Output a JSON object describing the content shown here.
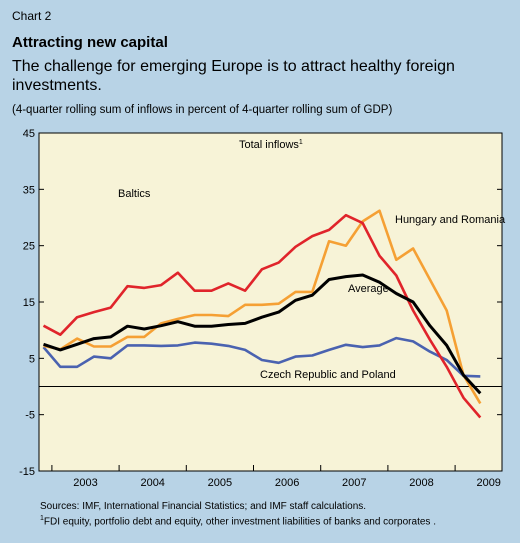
{
  "header": {
    "chart_number": "Chart 2",
    "title": "Attracting new capital",
    "subtitle": "The challenge for emerging Europe is to attract healthy foreign investments.",
    "note": "(4-quarter rolling sum of inflows in percent of 4-quarter rolling sum of GDP)"
  },
  "footer": {
    "sources": "Sources: IMF, International Financial Statistics; and IMF staff calculations.",
    "footnote_marker": "1",
    "footnote": "FDI equity, portfolio debt and equity, other investment liabilities of banks and corporates ."
  },
  "chart_data": {
    "type": "line",
    "annotation": "Total inflows",
    "annotation_sup": "1",
    "x": [
      "2002Q4",
      "2003Q1",
      "2003Q2",
      "2003Q3",
      "2003Q4",
      "2004Q1",
      "2004Q2",
      "2004Q3",
      "2004Q4",
      "2005Q1",
      "2005Q2",
      "2005Q3",
      "2005Q4",
      "2006Q1",
      "2006Q2",
      "2006Q3",
      "2006Q4",
      "2007Q1",
      "2007Q2",
      "2007Q3",
      "2007Q4",
      "2008Q1",
      "2008Q2",
      "2008Q3",
      "2008Q4",
      "2009Q1",
      "2009Q2"
    ],
    "x_tick_labels": [
      "2003",
      "2004",
      "2005",
      "2006",
      "2007",
      "2008",
      "2009"
    ],
    "y_ticks": [
      45,
      35,
      25,
      15,
      5,
      -5,
      -15
    ],
    "ylim": [
      -15,
      45
    ],
    "zero_line": 0,
    "series": [
      {
        "name": "Baltics",
        "color": "#e0242b",
        "values": [
          10.8,
          9.2,
          12.3,
          13.2,
          14.0,
          17.8,
          17.5,
          18.0,
          20.2,
          17.0,
          17.0,
          18.3,
          17.0,
          20.8,
          22.0,
          24.8,
          26.7,
          27.8,
          30.4,
          29.0,
          23.2,
          19.7,
          13.5,
          8.3,
          3.5,
          -2.0,
          -5.5
        ]
      },
      {
        "name": "Hungary and Romania",
        "color": "#f5a034",
        "values": [
          7.2,
          6.6,
          8.5,
          7.1,
          7.1,
          8.8,
          8.8,
          11.2,
          12.0,
          12.7,
          12.7,
          12.5,
          14.5,
          14.5,
          14.7,
          16.8,
          16.8,
          25.8,
          25.0,
          29.3,
          31.2,
          22.5,
          24.5,
          19.0,
          13.5,
          2.0,
          -3.0
        ]
      },
      {
        "name": "Average",
        "color": "#000000",
        "values": [
          7.5,
          6.5,
          7.5,
          8.5,
          8.8,
          10.7,
          10.2,
          10.8,
          11.5,
          10.7,
          10.7,
          11.0,
          11.2,
          12.3,
          13.2,
          15.3,
          16.2,
          19.0,
          19.5,
          19.8,
          18.5,
          16.5,
          15.0,
          10.8,
          7.3,
          2.0,
          -1.2
        ]
      },
      {
        "name": "Czech Republic and Poland",
        "color": "#4a62b0",
        "values": [
          7.0,
          3.5,
          3.5,
          5.3,
          5.0,
          7.3,
          7.3,
          7.2,
          7.3,
          7.8,
          7.6,
          7.2,
          6.5,
          4.7,
          4.2,
          5.3,
          5.5,
          6.5,
          7.4,
          7.0,
          7.3,
          8.6,
          8.0,
          6.2,
          4.7,
          1.9,
          1.8
        ]
      }
    ]
  }
}
